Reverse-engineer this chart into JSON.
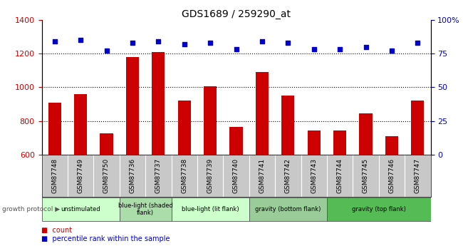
{
  "title": "GDS1689 / 259290_at",
  "categories": [
    "GSM87748",
    "GSM87749",
    "GSM87750",
    "GSM87736",
    "GSM87737",
    "GSM87738",
    "GSM87739",
    "GSM87740",
    "GSM87741",
    "GSM87742",
    "GSM87743",
    "GSM87744",
    "GSM87745",
    "GSM87746",
    "GSM87747"
  ],
  "bar_values": [
    910,
    960,
    728,
    1180,
    1210,
    920,
    1005,
    768,
    1090,
    950,
    745,
    745,
    845,
    710,
    920
  ],
  "percentile_values": [
    84,
    85,
    77,
    83,
    84,
    82,
    83,
    78,
    84,
    83,
    78,
    78,
    80,
    77,
    83
  ],
  "bar_color": "#cc0000",
  "percentile_color": "#0000cc",
  "ylim_left": [
    600,
    1400
  ],
  "ylim_right": [
    0,
    100
  ],
  "yticks_left": [
    600,
    800,
    1000,
    1200,
    1400
  ],
  "yticks_right": [
    0,
    25,
    50,
    75,
    100
  ],
  "dotted_lines": [
    800,
    1000,
    1200
  ],
  "groups": [
    {
      "label": "unstimulated",
      "start": 0,
      "end": 3,
      "color": "#ccffcc"
    },
    {
      "label": "blue-light (shaded\nflank)",
      "start": 3,
      "end": 5,
      "color": "#aaddaa"
    },
    {
      "label": "blue-light (lit flank)",
      "start": 5,
      "end": 8,
      "color": "#ccffcc"
    },
    {
      "label": "gravity (bottom flank)",
      "start": 8,
      "end": 11,
      "color": "#99cc99"
    },
    {
      "label": "gravity (top flank)",
      "start": 11,
      "end": 15,
      "color": "#55bb55"
    }
  ],
  "group_label": "growth protocol",
  "legend_items": [
    {
      "label": "count",
      "color": "#cc0000"
    },
    {
      "label": "percentile rank within the sample",
      "color": "#0000cc"
    }
  ],
  "xtick_bg": "#c8c8c8",
  "plot_bg": "#ffffff",
  "background_color": "#ffffff"
}
